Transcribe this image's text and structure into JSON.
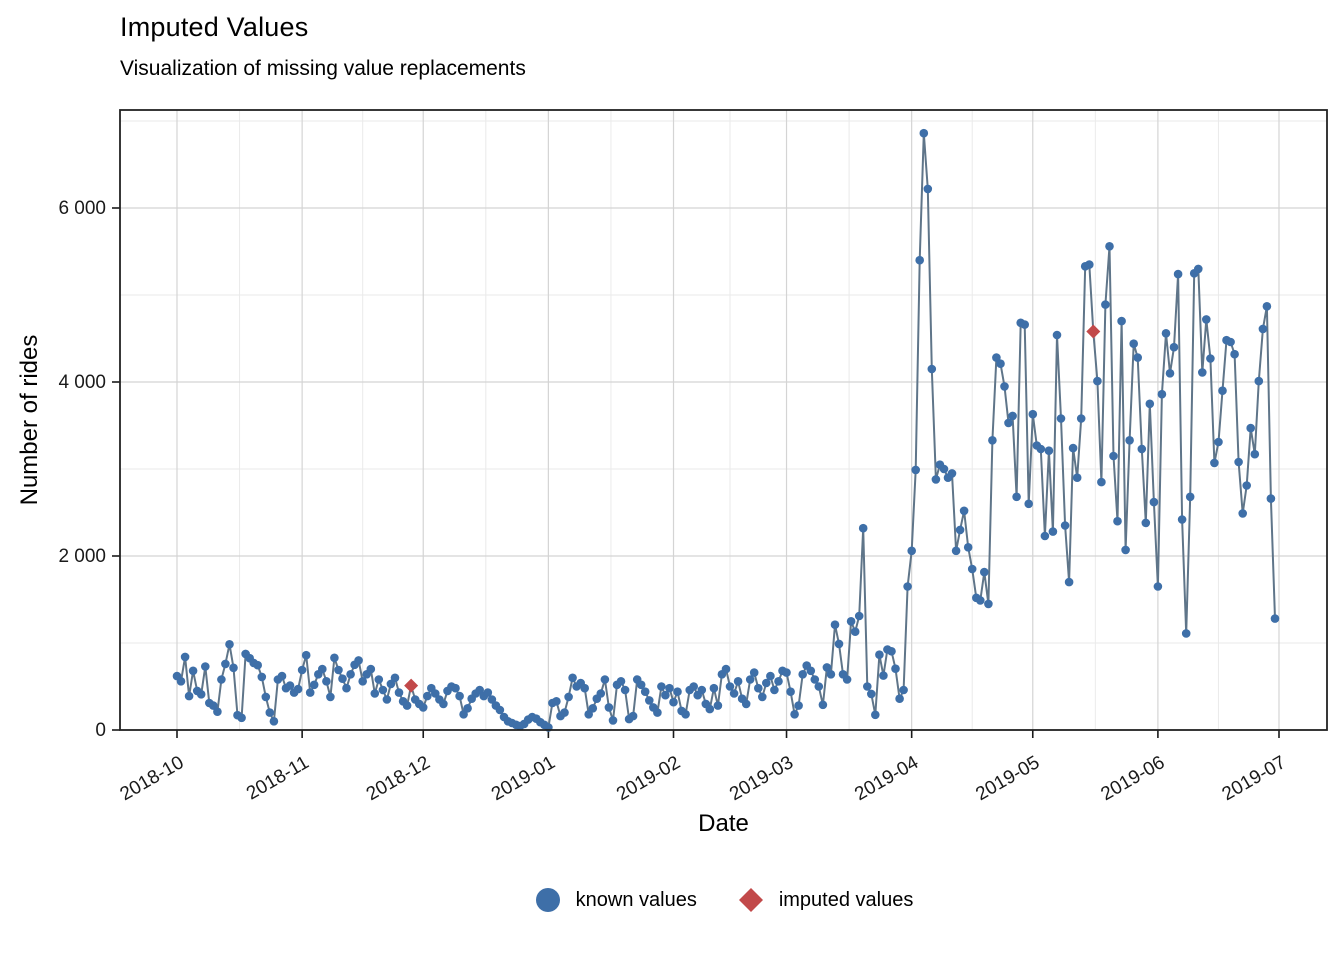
{
  "header": {
    "title": "Imputed Values",
    "subtitle": "Visualization of missing value replacements"
  },
  "legend": {
    "known_label": "known values",
    "imputed_label": "imputed values"
  },
  "chart_data": {
    "type": "line",
    "title": "Imputed Values",
    "subtitle": "Visualization of missing value replacements",
    "xlabel": "Date",
    "ylabel": "Number of rides",
    "start_date": "2018-10-01",
    "end_date": "2019-06-30",
    "x_ticks": [
      {
        "label": "2018-10",
        "day": 0
      },
      {
        "label": "2018-11",
        "day": 31
      },
      {
        "label": "2018-12",
        "day": 61
      },
      {
        "label": "2019-01",
        "day": 92
      },
      {
        "label": "2019-02",
        "day": 123
      },
      {
        "label": "2019-03",
        "day": 151
      },
      {
        "label": "2019-04",
        "day": 182
      },
      {
        "label": "2019-05",
        "day": 212
      },
      {
        "label": "2019-06",
        "day": 243
      },
      {
        "label": "2019-07",
        "day": 273
      }
    ],
    "y_ticks": [
      {
        "label": "0",
        "value": 0
      },
      {
        "label": "2 000",
        "value": 2000
      },
      {
        "label": "4 000",
        "value": 4000
      },
      {
        "label": "6 000",
        "value": 6000
      }
    ],
    "y_minor": [
      1000,
      3000,
      5000,
      7000
    ],
    "ylim": [
      0,
      7000
    ],
    "x_total_days": 273,
    "grid": true,
    "legend_position": "bottom",
    "series": [
      {
        "name": "rides",
        "values": [
          620,
          560,
          840,
          390,
          680,
          450,
          410,
          730,
          310,
          280,
          210,
          580,
          760,
          985,
          715,
          170,
          140,
          875,
          825,
          770,
          745,
          610,
          380,
          200,
          100,
          580,
          620,
          480,
          510,
          430,
          470,
          690,
          860,
          430,
          520,
          640,
          700,
          560,
          380,
          830,
          690,
          590,
          480,
          640,
          750,
          800,
          560,
          640,
          700,
          420,
          580,
          460,
          350,
          530,
          600,
          430,
          330,
          280,
          510,
          350,
          300,
          260,
          390,
          480,
          420,
          350,
          300,
          450,
          500,
          480,
          390,
          180,
          250,
          360,
          420,
          460,
          390,
          430,
          350,
          280,
          230,
          150,
          100,
          80,
          60,
          45,
          70,
          120,
          150,
          130,
          90,
          60,
          30,
          310,
          330,
          160,
          200,
          380,
          600,
          500,
          540,
          480,
          180,
          250,
          360,
          420,
          580,
          260,
          110,
          520,
          560,
          460,
          125,
          160,
          580,
          520,
          440,
          340,
          260,
          200,
          500,
          400,
          480,
          320,
          440,
          220,
          180,
          460,
          500,
          400,
          460,
          300,
          240,
          480,
          280,
          640,
          700,
          500,
          420,
          560,
          360,
          300,
          580,
          660,
          480,
          380,
          540,
          620,
          460,
          560,
          680,
          660,
          440,
          180,
          280,
          640,
          740,
          680,
          580,
          500,
          290,
          720,
          640,
          1210,
          990,
          640,
          580,
          1250,
          1130,
          1310,
          2320,
          500,
          415,
          175,
          865,
          625,
          925,
          905,
          705,
          360,
          460,
          1650,
          2060,
          2990,
          5400,
          6860,
          6220,
          4150,
          2880,
          3050,
          3000,
          2900,
          2950,
          2060,
          2300,
          2520,
          2100,
          1850,
          1520,
          1490,
          1815,
          1450,
          3330,
          4280,
          4210,
          3950,
          3530,
          3610,
          2680,
          4680,
          4660,
          2600,
          3630,
          3270,
          3230,
          2230,
          3210,
          2280,
          4540,
          3580,
          2350,
          1700,
          3240,
          2900,
          3580,
          5330,
          5350,
          4580,
          4010,
          2850,
          4890,
          5560,
          3150,
          2400,
          4700,
          2070,
          3330,
          4440,
          4280,
          3230,
          2380,
          3750,
          2620,
          1650,
          3860,
          4560,
          4100,
          4400,
          5240,
          2420,
          1110,
          2680,
          5250,
          5300,
          4110,
          4720,
          4270,
          3070,
          3310,
          3900,
          4480,
          4460,
          4320,
          3080,
          2490,
          2810,
          3470,
          3170,
          4010,
          4610,
          4870,
          2660,
          1280
        ]
      }
    ],
    "imputed_day_indices": [
      58,
      227
    ],
    "imputed_points": [
      {
        "date": "2018-11-28",
        "value": 510
      },
      {
        "date": "2019-05-16",
        "value": 4580
      }
    ],
    "colors": {
      "known": "#3e6fa8",
      "imputed": "#c2494a",
      "line": "#5f7589",
      "grid_major": "#d4d4d4",
      "grid_minor": "#eaeaea",
      "panel_border": "#222222",
      "tick": "#1a1a1a",
      "tick_text": "#1a1a1a"
    }
  }
}
